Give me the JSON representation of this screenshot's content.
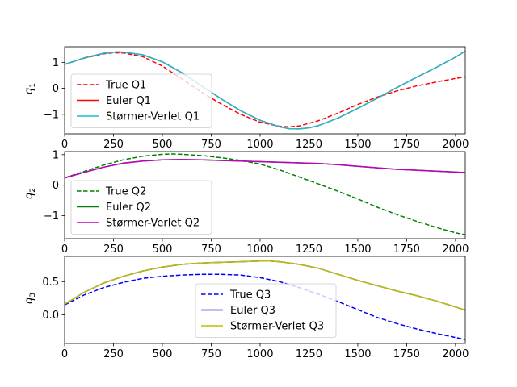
{
  "chart_data": [
    {
      "type": "line",
      "ylabel_main": "q",
      "ylabel_sub": "1",
      "xlim": [
        0,
        2050
      ],
      "ylim": [
        -1.75,
        1.6
      ],
      "xticks": [
        0,
        250,
        500,
        750,
        1000,
        1250,
        1500,
        1750,
        2000
      ],
      "yticks": [
        {
          "v": 1,
          "label": "1"
        },
        {
          "v": 0,
          "label": "0"
        },
        {
          "v": -1,
          "label": "−1"
        }
      ],
      "legend_position": "lower-left",
      "series": [
        {
          "name": "True Q1",
          "color": "#ff0000",
          "dash": "dashed",
          "x": [
            0,
            100,
            200,
            250,
            300,
            400,
            500,
            600,
            700,
            800,
            900,
            1000,
            1100,
            1150,
            1200,
            1300,
            1400,
            1500,
            1600,
            1700,
            1800,
            1900,
            2000,
            2050
          ],
          "y": [
            0.92,
            1.16,
            1.33,
            1.37,
            1.36,
            1.22,
            0.86,
            0.36,
            -0.15,
            -0.6,
            -1.0,
            -1.3,
            -1.46,
            -1.48,
            -1.45,
            -1.24,
            -0.95,
            -0.62,
            -0.34,
            -0.1,
            0.09,
            0.24,
            0.38,
            0.44
          ]
        },
        {
          "name": "Euler Q1",
          "color": "#ff0000",
          "dash": "solid",
          "x": [
            0,
            100,
            200,
            270,
            300,
            400,
            500,
            600,
            700,
            800,
            900,
            1000,
            1100,
            1150,
            1200,
            1250,
            1300,
            1400,
            1500,
            1600,
            1700,
            1800,
            1900,
            2000,
            2050
          ],
          "y": [
            0.92,
            1.17,
            1.35,
            1.4,
            1.39,
            1.29,
            1.02,
            0.6,
            0.1,
            -0.4,
            -0.86,
            -1.23,
            -1.48,
            -1.55,
            -1.56,
            -1.52,
            -1.43,
            -1.14,
            -0.77,
            -0.38,
            0.03,
            0.42,
            0.8,
            1.2,
            1.43
          ]
        },
        {
          "name": "Størmer-Verlet Q1",
          "color": "#17becf",
          "dash": "solid",
          "x": [
            0,
            100,
            200,
            270,
            300,
            400,
            500,
            600,
            700,
            800,
            900,
            1000,
            1100,
            1150,
            1200,
            1250,
            1300,
            1400,
            1500,
            1600,
            1700,
            1800,
            1900,
            2000,
            2050
          ],
          "y": [
            0.92,
            1.17,
            1.35,
            1.4,
            1.39,
            1.29,
            1.02,
            0.6,
            0.1,
            -0.4,
            -0.86,
            -1.23,
            -1.48,
            -1.55,
            -1.56,
            -1.52,
            -1.43,
            -1.14,
            -0.77,
            -0.38,
            0.03,
            0.42,
            0.8,
            1.2,
            1.43
          ]
        }
      ]
    },
    {
      "type": "line",
      "ylabel_main": "q",
      "ylabel_sub": "2",
      "xlim": [
        0,
        2050
      ],
      "ylim": [
        -1.75,
        1.1
      ],
      "xticks": [
        0,
        250,
        500,
        750,
        1000,
        1250,
        1500,
        1750,
        2000
      ],
      "yticks": [
        {
          "v": 1,
          "label": "1"
        },
        {
          "v": 0,
          "label": "0"
        },
        {
          "v": -1,
          "label": "−1"
        }
      ],
      "legend_position": "lower-left",
      "series": [
        {
          "name": "True Q2",
          "color": "#008000",
          "dash": "dashed",
          "x": [
            0,
            100,
            200,
            300,
            400,
            500,
            550,
            600,
            700,
            800,
            900,
            1000,
            1100,
            1200,
            1300,
            1400,
            1500,
            1600,
            1700,
            1800,
            1900,
            2000,
            2050
          ],
          "y": [
            0.24,
            0.45,
            0.66,
            0.83,
            0.95,
            1.01,
            1.02,
            1.01,
            0.97,
            0.9,
            0.81,
            0.69,
            0.5,
            0.27,
            0.04,
            -0.2,
            -0.45,
            -0.72,
            -0.96,
            -1.18,
            -1.38,
            -1.56,
            -1.62
          ]
        },
        {
          "name": "Euler Q2",
          "color": "#008000",
          "dash": "solid",
          "x": [
            0,
            100,
            200,
            300,
            400,
            500,
            600,
            700,
            800,
            900,
            1000,
            1100,
            1200,
            1300,
            1400,
            1500,
            1600,
            1700,
            1800,
            1900,
            2000,
            2050
          ],
          "y": [
            0.24,
            0.42,
            0.59,
            0.72,
            0.79,
            0.83,
            0.84,
            0.83,
            0.81,
            0.79,
            0.77,
            0.75,
            0.73,
            0.71,
            0.67,
            0.62,
            0.57,
            0.52,
            0.49,
            0.46,
            0.43,
            0.41
          ]
        },
        {
          "name": "Størmer-Verlet Q2",
          "color": "#bf00bf",
          "dash": "solid",
          "x": [
            0,
            100,
            200,
            300,
            400,
            500,
            600,
            700,
            800,
            900,
            1000,
            1100,
            1200,
            1300,
            1400,
            1500,
            1600,
            1700,
            1800,
            1900,
            2000,
            2050
          ],
          "y": [
            0.24,
            0.42,
            0.59,
            0.72,
            0.79,
            0.83,
            0.84,
            0.83,
            0.81,
            0.79,
            0.77,
            0.75,
            0.73,
            0.71,
            0.67,
            0.62,
            0.57,
            0.52,
            0.49,
            0.46,
            0.43,
            0.41
          ]
        }
      ]
    },
    {
      "type": "line",
      "ylabel_main": "q",
      "ylabel_sub": "3",
      "xlim": [
        0,
        2050
      ],
      "ylim": [
        -0.43,
        0.88
      ],
      "xticks": [
        0,
        250,
        500,
        750,
        1000,
        1250,
        1500,
        1750,
        2000
      ],
      "yticks": [
        {
          "v": 0.5,
          "label": "0.5"
        },
        {
          "v": 0,
          "label": "0.0"
        }
      ],
      "legend_position": "lower-center",
      "series": [
        {
          "name": "True Q3",
          "color": "#0000ff",
          "dash": "dashed",
          "x": [
            0,
            100,
            200,
            300,
            400,
            500,
            600,
            700,
            800,
            900,
            1000,
            1100,
            1200,
            1300,
            1400,
            1500,
            1600,
            1700,
            1800,
            1900,
            2000,
            2050
          ],
          "y": [
            0.15,
            0.3,
            0.41,
            0.49,
            0.55,
            0.58,
            0.6,
            0.61,
            0.61,
            0.6,
            0.56,
            0.5,
            0.41,
            0.31,
            0.2,
            0.08,
            -0.04,
            -0.13,
            -0.21,
            -0.28,
            -0.34,
            -0.37
          ]
        },
        {
          "name": "Euler Q3",
          "color": "#0000cd",
          "dash": "solid",
          "x": [
            0,
            100,
            200,
            300,
            400,
            500,
            600,
            700,
            800,
            900,
            1000,
            1050,
            1100,
            1200,
            1300,
            1400,
            1500,
            1600,
            1700,
            1800,
            1900,
            2000,
            2050
          ],
          "y": [
            0.16,
            0.34,
            0.48,
            0.58,
            0.66,
            0.72,
            0.76,
            0.78,
            0.79,
            0.8,
            0.81,
            0.81,
            0.8,
            0.76,
            0.7,
            0.61,
            0.52,
            0.44,
            0.36,
            0.29,
            0.21,
            0.12,
            0.07
          ]
        },
        {
          "name": "Størmer-Verlet Q3",
          "color": "#bfbf00",
          "dash": "solid",
          "x": [
            0,
            100,
            200,
            300,
            400,
            500,
            600,
            700,
            800,
            900,
            1000,
            1050,
            1100,
            1200,
            1300,
            1400,
            1500,
            1600,
            1700,
            1800,
            1900,
            2000,
            2050
          ],
          "y": [
            0.16,
            0.34,
            0.48,
            0.58,
            0.66,
            0.72,
            0.76,
            0.78,
            0.79,
            0.8,
            0.81,
            0.81,
            0.8,
            0.76,
            0.7,
            0.61,
            0.52,
            0.44,
            0.36,
            0.29,
            0.21,
            0.12,
            0.07
          ]
        }
      ]
    }
  ]
}
